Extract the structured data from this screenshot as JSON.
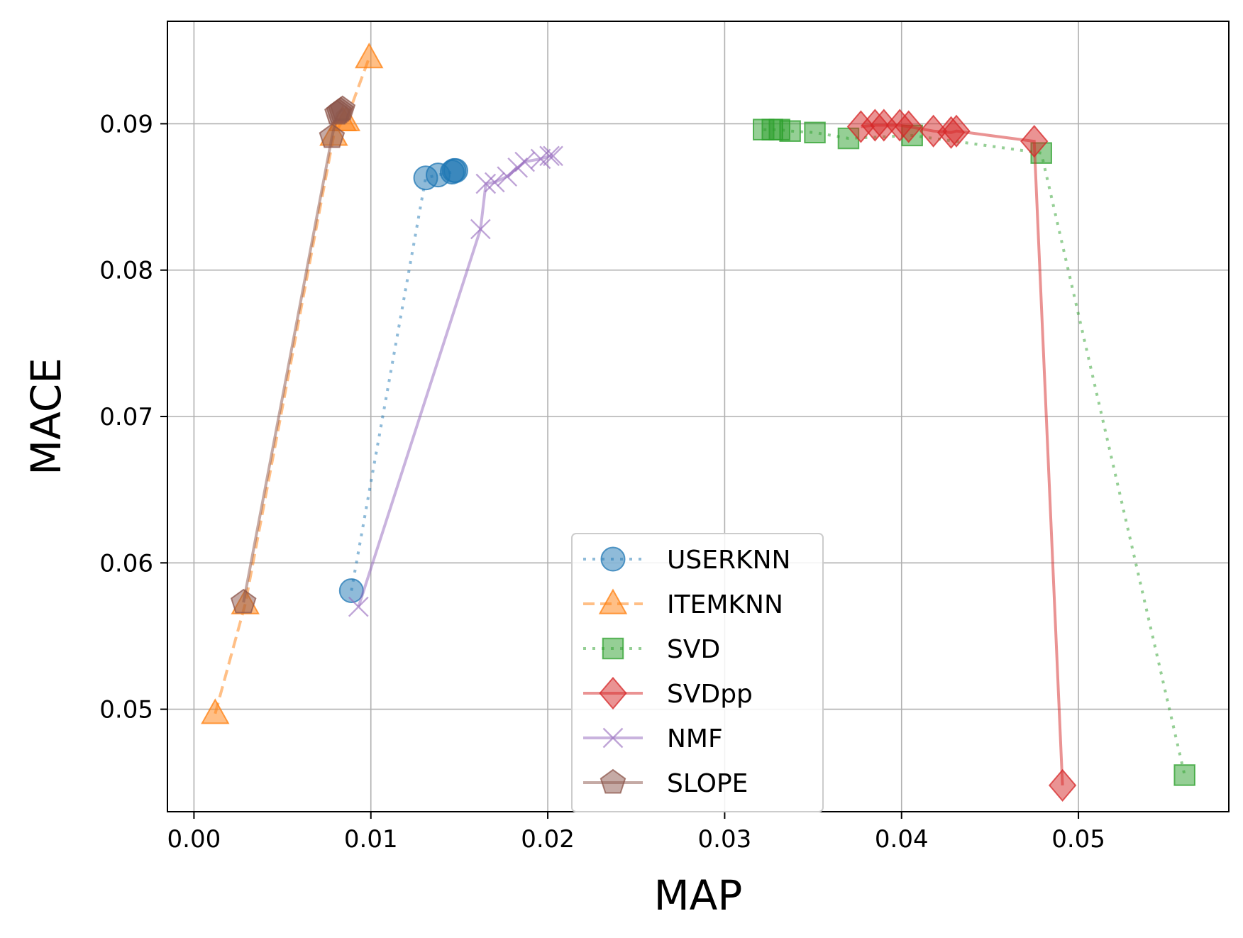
{
  "chart_data": {
    "type": "line",
    "xlabel": "MAP",
    "ylabel": "MACE",
    "xlim": [
      -0.0015,
      0.0585
    ],
    "ylim": [
      0.043,
      0.097
    ],
    "xticks": [
      "0.00",
      "0.01",
      "0.02",
      "0.03",
      "0.04",
      "0.05"
    ],
    "xtick_values": [
      0.0,
      0.01,
      0.02,
      0.03,
      0.04,
      0.05
    ],
    "yticks": [
      "0.05",
      "0.06",
      "0.07",
      "0.08",
      "0.09"
    ],
    "ytick_values": [
      0.05,
      0.06,
      0.07,
      0.08,
      0.09
    ],
    "grid": true,
    "legend_position": "bottom-center",
    "series": [
      {
        "name": "USERKNN",
        "color": "#1f77b4",
        "marker": "circle",
        "linestyle": "dotted",
        "x": [
          0.0089,
          0.0131,
          0.0138,
          0.0146,
          0.0147,
          0.0148
        ],
        "y": [
          0.0581,
          0.0863,
          0.0865,
          0.0867,
          0.0868,
          0.0868
        ]
      },
      {
        "name": "ITEMKNN",
        "color": "#ff7f0e",
        "marker": "triangle",
        "linestyle": "dashed",
        "x": [
          0.0012,
          0.0029,
          0.0079,
          0.0084,
          0.0086,
          0.0099
        ],
        "y": [
          0.0497,
          0.0572,
          0.0892,
          0.0902,
          0.0902,
          0.0945
        ]
      },
      {
        "name": "SVD",
        "color": "#2ca02c",
        "marker": "square",
        "linestyle": "dotted",
        "x": [
          0.0322,
          0.0327,
          0.0331,
          0.0337,
          0.0351,
          0.037,
          0.0406,
          0.0479,
          0.056
        ],
        "y": [
          0.0896,
          0.0896,
          0.0896,
          0.0895,
          0.0894,
          0.089,
          0.0892,
          0.088,
          0.0455
        ]
      },
      {
        "name": "SVDpp",
        "color": "#d62728",
        "marker": "diamond",
        "linestyle": "solid",
        "x": [
          0.0377,
          0.0385,
          0.039,
          0.0399,
          0.0404,
          0.0418,
          0.0428,
          0.0431,
          0.0475,
          0.0491
        ],
        "y": [
          0.0898,
          0.0899,
          0.0899,
          0.0899,
          0.0898,
          0.0895,
          0.0894,
          0.0895,
          0.0888,
          0.0448
        ]
      },
      {
        "name": "NMF",
        "color": "#9467bd",
        "marker": "x",
        "linestyle": "solid",
        "x": [
          0.0093,
          0.0162,
          0.0165,
          0.017,
          0.0177,
          0.0183,
          0.0187,
          0.0196,
          0.0201,
          0.0203
        ],
        "y": [
          0.057,
          0.0828,
          0.0859,
          0.086,
          0.0864,
          0.087,
          0.0874,
          0.0876,
          0.0878,
          0.0878
        ]
      },
      {
        "name": "SLOPE",
        "color": "#8c564b",
        "marker": "pentagon",
        "linestyle": "solid",
        "x": [
          0.0028,
          0.0078,
          0.0081,
          0.0082,
          0.0083,
          0.0084
        ],
        "y": [
          0.0573,
          0.0891,
          0.0907,
          0.0908,
          0.0909,
          0.091
        ]
      }
    ]
  }
}
